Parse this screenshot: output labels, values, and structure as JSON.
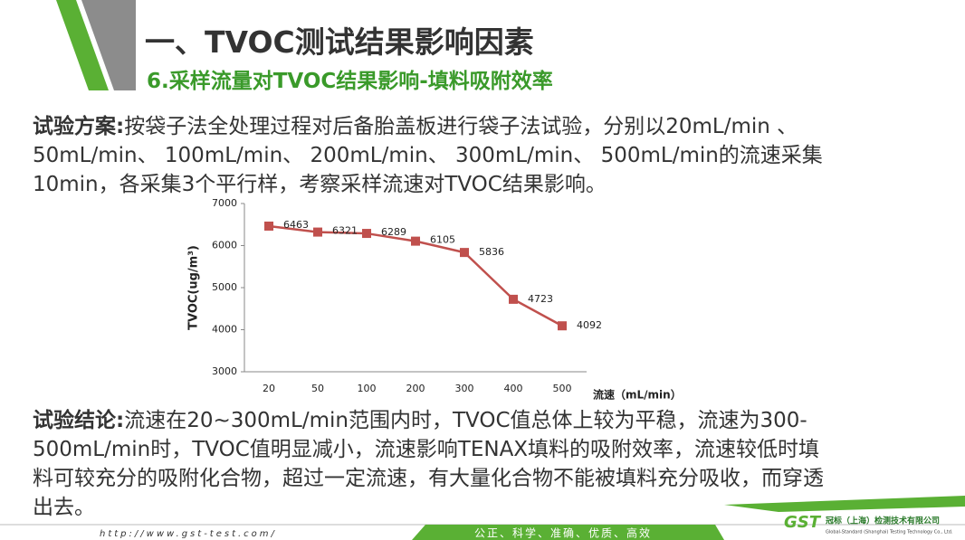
{
  "header": {
    "title": "一、TVOC测试结果影响因素",
    "subtitle": "6.采样流量对TVOC结果影响-填料吸附效率"
  },
  "plan": {
    "label": "试验方案:",
    "lines": [
      "按袋子法全处理过程对后备胎盖板进行袋子法试验，分别以20mL/min 、",
      "50mL/min、 100mL/min、 200mL/min、 300mL/min、 500mL/min的流速采集",
      "10min，各采集3个平行样，考察采样流速对TVOC结果影响。"
    ]
  },
  "chart_data": {
    "type": "line",
    "y_label": "TVOC(ug/m³)",
    "x_label": "流速（mL/min）",
    "categories": [
      "20",
      "50",
      "100",
      "200",
      "300",
      "400",
      "500"
    ],
    "series": [
      {
        "name": "TVOC",
        "color": "#c0504d",
        "values": [
          6463,
          6321,
          6289,
          6105,
          5836,
          4723,
          4092
        ]
      }
    ],
    "ylim": [
      3000,
      7000
    ],
    "yticks": [
      3000,
      4000,
      5000,
      6000,
      7000
    ],
    "grid": false
  },
  "conclusion": {
    "label": "试验结论:",
    "lines": [
      "流速在20~300mL/min范围内时，TVOC值总体上较为平稳，流速为300-",
      "500mL/min时，TVOC值明显减小，流速影响TENAX填料的吸附效率，流速较低时填",
      "料可较充分的吸附化合物，超过一定流速，有大量化合物不能被填料充分吸收，而穿透",
      "出去。"
    ]
  },
  "footer": {
    "url": "http://www.gst-test.com/",
    "motto": "公正、科学、准确、优质、高效",
    "logo": "GST",
    "company": "冠标（上海）检测技术有限公司",
    "company_en": "Global-Standard (Shanghai) Testing Technology Co., Ltd."
  }
}
